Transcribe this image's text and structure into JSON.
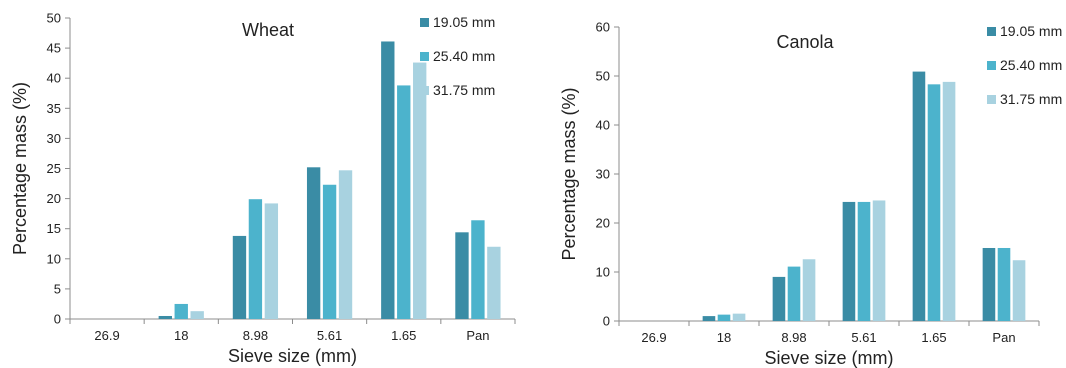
{
  "chart_data": [
    {
      "type": "bar",
      "title": "Wheat",
      "xlabel": "Sieve size (mm)",
      "ylabel": "Percentage mass (%)",
      "categories": [
        "26.9",
        "18",
        "8.98",
        "5.61",
        "1.65",
        "Pan"
      ],
      "ylim": [
        0,
        50
      ],
      "yticks": [
        0,
        5,
        10,
        15,
        20,
        25,
        30,
        35,
        40,
        45,
        50
      ],
      "grid": false,
      "legend": "top-right",
      "series": [
        {
          "name": "19.05 mm",
          "color": "#3a8ca5",
          "values": [
            0,
            0.5,
            13.8,
            25.2,
            46.1,
            14.4
          ]
        },
        {
          "name": "25.40 mm",
          "color": "#4cb3cc",
          "values": [
            0,
            2.5,
            19.9,
            22.3,
            38.8,
            16.4
          ]
        },
        {
          "name": "31.75 mm",
          "color": "#a8d2e0",
          "values": [
            0,
            1.3,
            19.2,
            24.7,
            42.6,
            12.0
          ]
        }
      ]
    },
    {
      "type": "bar",
      "title": "Canola",
      "xlabel": "Sieve size (mm)",
      "ylabel": "Percentage mass (%)",
      "categories": [
        "26.9",
        "18",
        "8.98",
        "5.61",
        "1.65",
        "Pan"
      ],
      "ylim": [
        0,
        60
      ],
      "yticks": [
        0,
        10,
        20,
        30,
        40,
        50,
        60
      ],
      "grid": false,
      "legend": "top-right",
      "series": [
        {
          "name": "19.05 mm",
          "color": "#3a8ca5",
          "values": [
            0,
            1.0,
            9.0,
            24.3,
            50.9,
            14.9
          ]
        },
        {
          "name": "25.40 mm",
          "color": "#4cb3cc",
          "values": [
            0,
            1.3,
            11.1,
            24.3,
            48.3,
            14.9
          ]
        },
        {
          "name": "31.75 mm",
          "color": "#a8d2e0",
          "values": [
            0,
            1.5,
            12.6,
            24.6,
            48.8,
            12.4
          ]
        }
      ]
    }
  ]
}
